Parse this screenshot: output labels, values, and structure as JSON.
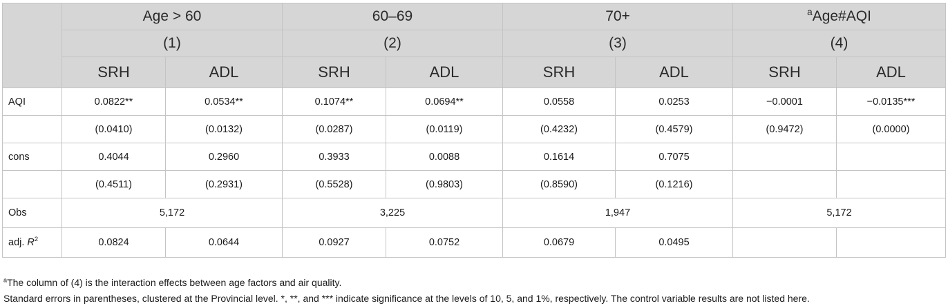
{
  "table": {
    "groups": [
      {
        "title": "Age > 60",
        "number": "(1)"
      },
      {
        "title": "60–69",
        "number": "(2)"
      },
      {
        "title": "70+",
        "number": "(3)"
      },
      {
        "title_sup": "a",
        "title": "Age#AQI",
        "number": "(4)"
      }
    ],
    "subheaders": [
      "SRH",
      "ADL",
      "SRH",
      "ADL",
      "SRH",
      "ADL",
      "SRH",
      "ADL"
    ],
    "rows": {
      "aqi": {
        "label": "AQI",
        "values": [
          "0.0822**",
          "0.0534**",
          "0.1074**",
          "0.0694**",
          "0.0558",
          "0.0253",
          "−0.0001",
          "−0.0135***"
        ]
      },
      "aqi_se": {
        "label": "",
        "values": [
          "(0.0410)",
          "(0.0132)",
          "(0.0287)",
          "(0.0119)",
          "(0.4232)",
          "(0.4579)",
          "(0.9472)",
          "(0.0000)"
        ]
      },
      "cons": {
        "label": "cons",
        "values": [
          "0.4044",
          "0.2960",
          "0.3933",
          "0.0088",
          "0.1614",
          "0.7075",
          "",
          ""
        ]
      },
      "cons_se": {
        "label": "",
        "values": [
          "(0.4511)",
          "(0.2931)",
          "(0.5528)",
          "(0.9803)",
          "(0.8590)",
          "(0.1216)",
          "",
          ""
        ]
      },
      "obs": {
        "label": "Obs",
        "values": [
          "5,172",
          "3,225",
          "1,947",
          "5,172"
        ]
      },
      "r2": {
        "label_prefix": "adj. ",
        "label_var": "R",
        "label_sup": "2",
        "values": [
          "0.0824",
          "0.0644",
          "0.0927",
          "0.0752",
          "0.0679",
          "0.0495",
          "",
          ""
        ]
      }
    }
  },
  "notes": {
    "note1_sup": "a",
    "note1": "The column of (4) is the interaction effects between age factors and air quality.",
    "note2": "Standard errors in parentheses, clustered at the Provincial level. *, **, and *** indicate significance at the levels of 10, 5, and 1%, respectively. The control variable results are not listed here."
  }
}
